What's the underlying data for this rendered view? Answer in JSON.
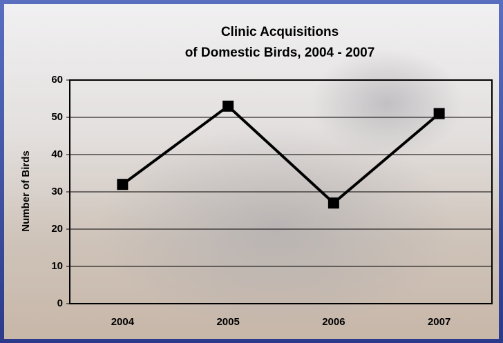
{
  "chart_data": {
    "type": "line",
    "title": [
      "Clinic Acquisitions",
      "of Domestic Birds, 2004 - 2007"
    ],
    "y_label": "Number of Birds",
    "categories": [
      "2004",
      "2005",
      "2006",
      "2007"
    ],
    "values": [
      32,
      53,
      27,
      51
    ],
    "color": "#000000",
    "ylim": [
      0,
      60
    ],
    "yticks": [
      0,
      10,
      20,
      30,
      40,
      50,
      60
    ],
    "grid": true
  }
}
